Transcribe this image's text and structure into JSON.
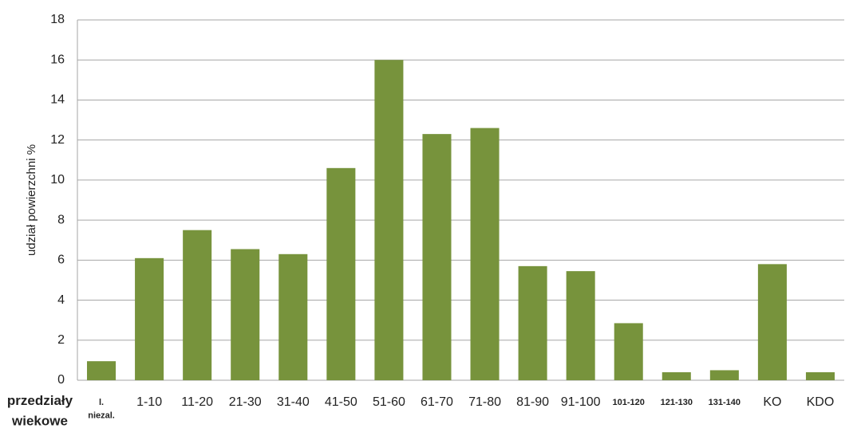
{
  "chart_data": {
    "type": "bar",
    "y_label": "udział powierzchni %",
    "x_label": "przedziały\nwiekowe",
    "categories": [
      "l.\nniezal.",
      "1-10",
      "11-20",
      "21-30",
      "31-40",
      "41-50",
      "51-60",
      "61-70",
      "71-80",
      "81-90",
      "91-100",
      "101-120",
      "121-130",
      "131-140",
      "KO",
      "KDO"
    ],
    "values": [
      0.95,
      6.1,
      7.5,
      6.55,
      6.3,
      10.6,
      16,
      12.3,
      12.6,
      5.7,
      5.45,
      2.85,
      0.4,
      0.5,
      5.8,
      0.4
    ],
    "color": "#77933c",
    "ylim": [
      0,
      18
    ],
    "yticks": [
      0,
      2,
      4,
      6,
      8,
      10,
      12,
      14,
      16,
      18
    ],
    "grid": true
  }
}
